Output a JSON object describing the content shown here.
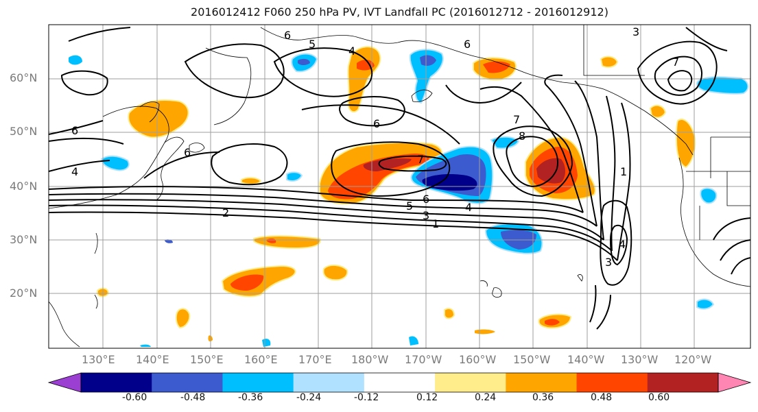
{
  "title": "2016012412 F060 250 hPa PV, IVT Landfall PC (2016012712 - 2016012912)",
  "lat_labels": [
    "60°N",
    "50°N",
    "40°N",
    "30°N",
    "20°N"
  ],
  "lon_labels": [
    "130°E",
    "140°E",
    "150°E",
    "160°E",
    "170°E",
    "180°W",
    "170°W",
    "160°W",
    "150°W",
    "140°W",
    "130°W",
    "120°W"
  ],
  "contour_labels": [
    "6",
    "5",
    "4",
    "6",
    "6",
    "7",
    "8",
    "7",
    "6",
    "6",
    "4",
    "7",
    "6",
    "5",
    "4",
    "3",
    "2",
    "1",
    "1",
    "4",
    "3",
    "3"
  ],
  "colorbar": {
    "ticks": [
      "-0.60",
      "-0.48",
      "-0.36",
      "-0.24",
      "-0.12",
      "0.12",
      "0.24",
      "0.36",
      "0.48",
      "0.60"
    ],
    "colors": [
      "#9b3fd3",
      "#00008b",
      "#3b5bcf",
      "#00bfff",
      "#b0e2ff",
      "#ffffff",
      "#ffec8b",
      "#ffa500",
      "#ff4500",
      "#b22222",
      "#ff85b3"
    ]
  },
  "colors": {
    "grid": "#9e9e9e",
    "contour": "#000000",
    "coast": "#000000"
  }
}
